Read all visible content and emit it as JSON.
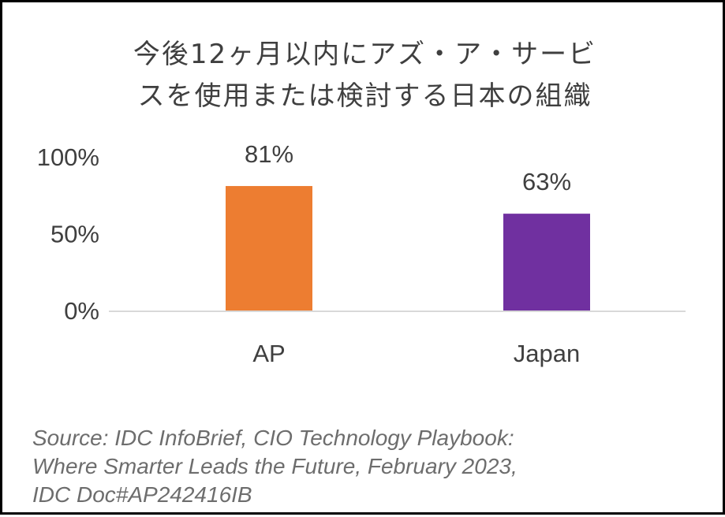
{
  "chart_data": {
    "type": "bar",
    "title_lines": [
      "今後12ヶ月以内にアズ・ア・サービ",
      "スを使用または検討する日本の組織"
    ],
    "categories": [
      "AP",
      "Japan"
    ],
    "values": [
      81,
      63
    ],
    "value_labels": [
      "81%",
      "63%"
    ],
    "bar_colors": [
      "#ED7D31",
      "#7030A0"
    ],
    "ylim": [
      0,
      100
    ],
    "yticks": [
      0,
      50,
      100
    ],
    "ytick_labels": [
      "0%",
      "50%",
      "100%"
    ],
    "xlabel": "",
    "ylabel": "",
    "grid": false,
    "legend": "none"
  },
  "source": {
    "lines": [
      "Source: IDC InfoBrief, CIO Technology Playbook:",
      "Where Smarter Leads the Future, February 2023,",
      "IDC Doc#AP242416IB"
    ]
  },
  "colors": {
    "text": "#3f3f3f",
    "axis": "#d9d9d9",
    "source_text": "#6d6d6d",
    "border": "#000000"
  }
}
